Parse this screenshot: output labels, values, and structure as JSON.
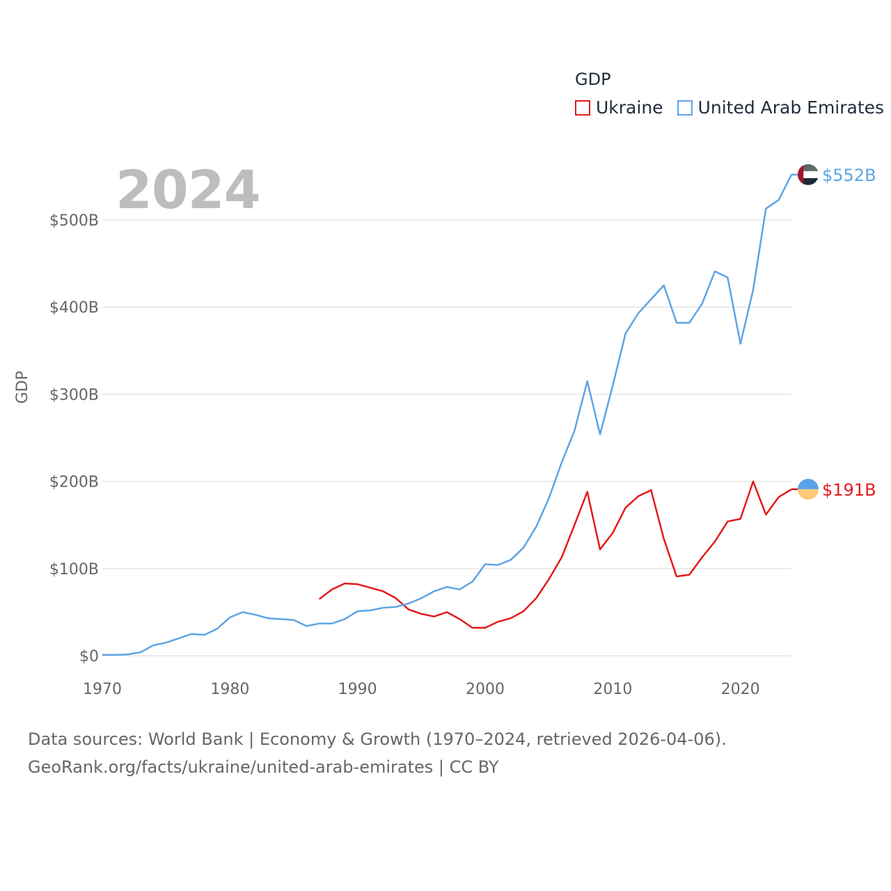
{
  "year_label": "2024",
  "footer": {
    "line1": "Data sources: World Bank | Economy & Growth (1970–2024, retrieved 2026-04-06).",
    "line2": "GeoRank.org/facts/ukraine/united-arab-emirates | CC BY"
  },
  "chart_data": {
    "type": "line",
    "title": "GDP",
    "ylabel": "GDP",
    "xlim": [
      1970,
      2024
    ],
    "ylim": [
      0,
      500
    ],
    "x_ticks": [
      1970,
      1980,
      1990,
      2000,
      2010,
      2020
    ],
    "x_tick_labels": [
      "1970",
      "1980",
      "1990",
      "2000",
      "2010",
      "2020"
    ],
    "y_ticks": [
      0,
      100,
      200,
      300,
      400,
      500
    ],
    "y_tick_labels": [
      "$0",
      "$100B",
      "$200B",
      "$300B",
      "$400B",
      "$500B"
    ],
    "grid": true,
    "legend_position": "top-right",
    "series": [
      {
        "name": "Ukraine",
        "color": "#e31a1c",
        "end_label": "$191B",
        "flag_icon": "ukraine-flag-icon",
        "x": [
          1987,
          1988,
          1989,
          1990,
          1991,
          1992,
          1993,
          1994,
          1995,
          1996,
          1997,
          1998,
          1999,
          2000,
          2001,
          2002,
          2003,
          2004,
          2005,
          2006,
          2007,
          2008,
          2009,
          2010,
          2011,
          2012,
          2013,
          2014,
          2015,
          2016,
          2017,
          2018,
          2019,
          2020,
          2021,
          2022,
          2023,
          2024
        ],
        "values": [
          65,
          76,
          83,
          82,
          78,
          74,
          66,
          53,
          48,
          45,
          50,
          42,
          32,
          32,
          39,
          43,
          51,
          66,
          88,
          113,
          150,
          188,
          122,
          141,
          170,
          183,
          190,
          134,
          91,
          93,
          113,
          131,
          154,
          157,
          200,
          162,
          182,
          191
        ]
      },
      {
        "name": "United Arab Emirates",
        "color": "#5ea4e3",
        "end_label": "$552B",
        "flag_icon": "uae-flag-icon",
        "x": [
          1970,
          1971,
          1972,
          1973,
          1974,
          1975,
          1976,
          1977,
          1978,
          1979,
          1980,
          1981,
          1982,
          1983,
          1984,
          1985,
          1986,
          1987,
          1988,
          1989,
          1990,
          1991,
          1992,
          1993,
          1994,
          1995,
          1996,
          1997,
          1998,
          1999,
          2000,
          2001,
          2002,
          2003,
          2004,
          2005,
          2006,
          2007,
          2008,
          2009,
          2010,
          2011,
          2012,
          2013,
          2014,
          2015,
          2016,
          2017,
          2018,
          2019,
          2020,
          2021,
          2022,
          2023,
          2024
        ],
        "values": [
          1,
          1,
          1.5,
          4,
          12,
          15,
          20,
          25,
          24,
          31,
          44,
          50,
          47,
          43,
          42,
          41,
          34,
          37,
          37,
          42,
          51,
          52,
          55,
          56,
          60,
          66,
          74,
          79,
          76,
          85,
          105,
          104,
          110,
          124,
          148,
          181,
          222,
          258,
          315,
          254,
          310,
          370,
          393,
          409,
          425,
          382,
          382,
          404,
          441,
          434,
          358,
          420,
          513,
          523,
          552
        ]
      }
    ]
  }
}
